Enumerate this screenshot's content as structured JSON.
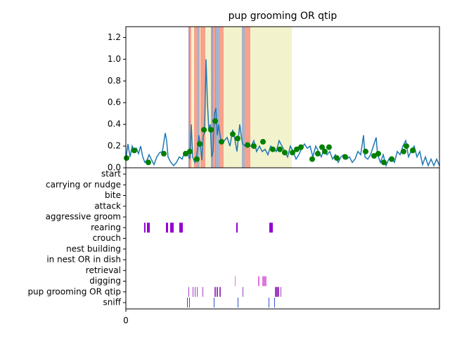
{
  "chart_data": {
    "type": "line",
    "title": "pup grooming OR qtip",
    "xlim": [
      0,
      446
    ],
    "xticks": [
      0
    ],
    "ylim": [
      0,
      1.3
    ],
    "yticks": [
      {
        "value": 0,
        "label": "0.0"
      },
      0.2,
      0.4,
      0.6,
      0.8,
      {
        "value": 1,
        "label": "1.0"
      },
      1.2
    ],
    "series": [
      {
        "color": "#1f77b4",
        "x": [
          0,
          3,
          6,
          9,
          12,
          15,
          18,
          21,
          24,
          27,
          30,
          33,
          36,
          40,
          44,
          48,
          52,
          56,
          58,
          60,
          64,
          68,
          72,
          76,
          80,
          84,
          88,
          91,
          93,
          95,
          98,
          101,
          104,
          106,
          108,
          110,
          112,
          114,
          116,
          118,
          120,
          122,
          124,
          126,
          128,
          130,
          132,
          134,
          136,
          140,
          144,
          148,
          152,
          154,
          158,
          162,
          164,
          166,
          170,
          174,
          178,
          182,
          186,
          190,
          194,
          198,
          202,
          206,
          210,
          214,
          218,
          222,
          226,
          230,
          234,
          238,
          242,
          246,
          250,
          254,
          258,
          262,
          266,
          270,
          274,
          278,
          282,
          286,
          290,
          294,
          298,
          302,
          306,
          310,
          314,
          318,
          322,
          326,
          330,
          334,
          338,
          340,
          344,
          348,
          352,
          356,
          358,
          362,
          366,
          370,
          374,
          378,
          382,
          386,
          390,
          394,
          398,
          402,
          406,
          410,
          414,
          418,
          422,
          426,
          430,
          434,
          438,
          442,
          446
        ],
        "values": [
          0.08,
          0.22,
          0.1,
          0.2,
          0.15,
          0.18,
          0.13,
          0.2,
          0.1,
          0.05,
          0.07,
          0.12,
          0.08,
          0.03,
          0.1,
          0.14,
          0.15,
          0.32,
          0.25,
          0.1,
          0.05,
          0.02,
          0.05,
          0.1,
          0.08,
          0.15,
          0.12,
          0.08,
          0.4,
          0.1,
          0.05,
          0.12,
          0.3,
          0.2,
          0.07,
          0.3,
          0.32,
          1.0,
          0.6,
          0.35,
          0.4,
          0.1,
          0.15,
          0.5,
          0.55,
          0.3,
          0.4,
          0.3,
          0.23,
          0.25,
          0.28,
          0.2,
          0.35,
          0.3,
          0.15,
          0.4,
          0.3,
          0.22,
          0.2,
          0.2,
          0.2,
          0.25,
          0.15,
          0.2,
          0.15,
          0.17,
          0.12,
          0.2,
          0.18,
          0.15,
          0.25,
          0.2,
          0.15,
          0.1,
          0.2,
          0.15,
          0.08,
          0.12,
          0.18,
          0.22,
          0.18,
          0.2,
          0.1,
          0.2,
          0.15,
          0.1,
          0.18,
          0.12,
          0.15,
          0.08,
          0.12,
          0.05,
          0.1,
          0.12,
          0.08,
          0.1,
          0.05,
          0.08,
          0.15,
          0.12,
          0.3,
          0.1,
          0.08,
          0.12,
          0.2,
          0.28,
          0.12,
          0.05,
          0.12,
          0.02,
          0.08,
          0.1,
          0.05,
          0.15,
          0.12,
          0.2,
          0.25,
          0.1,
          0.16,
          0.2,
          0.1,
          0.15,
          0.03,
          0.1,
          0.02,
          0.08,
          0.02,
          0.08,
          0.02
        ]
      }
    ],
    "points": {
      "color": "#008000",
      "x": [
        1,
        12,
        32,
        54,
        85,
        91,
        101,
        105,
        111,
        121,
        127,
        136,
        152,
        159,
        173,
        182,
        195,
        209,
        219,
        226,
        237,
        243,
        249,
        265,
        273,
        279,
        283,
        289,
        300,
        312,
        341,
        353,
        359,
        367,
        378,
        395,
        399,
        408
      ],
      "values": [
        0.09,
        0.16,
        0.05,
        0.13,
        0.13,
        0.15,
        0.08,
        0.22,
        0.35,
        0.35,
        0.43,
        0.24,
        0.31,
        0.27,
        0.21,
        0.2,
        0.24,
        0.17,
        0.17,
        0.14,
        0.14,
        0.17,
        0.19,
        0.08,
        0.13,
        0.19,
        0.15,
        0.19,
        0.09,
        0.1,
        0.15,
        0.11,
        0.13,
        0.05,
        0.08,
        0.15,
        0.2,
        0.16
      ]
    },
    "spans": [
      {
        "x": [
          89,
          236
        ],
        "color": "#eeeebb"
      },
      {
        "x": [
          89,
          93
        ],
        "color": "#fa8072"
      },
      {
        "x": [
          97,
          101
        ],
        "color": "#fa8072"
      },
      {
        "x": [
          106,
          113
        ],
        "color": "#fa8072"
      },
      {
        "x": [
          122,
          128
        ],
        "color": "#fa8072"
      },
      {
        "x": [
          133,
          139
        ],
        "color": "#fa8072"
      },
      {
        "x": [
          169,
          177
        ],
        "color": "#fa8072"
      },
      {
        "x": [
          89,
          91
        ],
        "color": "#8899cc"
      },
      {
        "x": [
          101,
          105
        ],
        "color": "#8899cc"
      },
      {
        "x": [
          121,
          124
        ],
        "color": "#8899cc"
      },
      {
        "x": [
          127,
          133
        ],
        "color": "#8899cc"
      },
      {
        "x": [
          165,
          169
        ],
        "color": "#8899cc"
      }
    ],
    "ethogram": {
      "categories": [
        "start",
        "carrying or nudge",
        "bite",
        "attack",
        "aggressive groom",
        "rearing",
        "crouch",
        "nest building",
        "in nest OR in dish",
        "retrieval",
        "digging",
        "pup grooming OR qtip",
        "sniff"
      ],
      "events": [
        {
          "row": 5,
          "color": "#9400d3",
          "intervals": [
            [
              26,
              28
            ],
            [
              30,
              34
            ],
            [
              57,
              60
            ],
            [
              63,
              68
            ],
            [
              76,
              81
            ],
            [
              157,
              159
            ],
            [
              204,
              209
            ]
          ]
        },
        {
          "row": 10,
          "color": "#dd77dd",
          "intervals": [
            [
              155,
              156
            ],
            [
              188,
              190
            ],
            [
              194,
              200
            ]
          ]
        },
        {
          "row": 11,
          "color": "#a040c0",
          "intervals": [
            [
              89,
              90
            ],
            [
              95,
              96
            ],
            [
              98,
              99
            ],
            [
              101,
              102
            ],
            [
              109,
              110
            ],
            [
              126,
              128
            ],
            [
              129,
              131
            ],
            [
              133,
              135
            ],
            [
              166,
              167
            ],
            [
              212,
              218
            ],
            [
              220,
              221
            ]
          ]
        },
        {
          "row": 12,
          "color": "#3050d0",
          "intervals": [
            [
              87,
              88
            ],
            [
              90,
              91
            ],
            [
              125,
              126
            ],
            [
              159,
              160
            ],
            [
              203,
              204
            ],
            [
              211,
              212
            ]
          ]
        }
      ]
    }
  }
}
